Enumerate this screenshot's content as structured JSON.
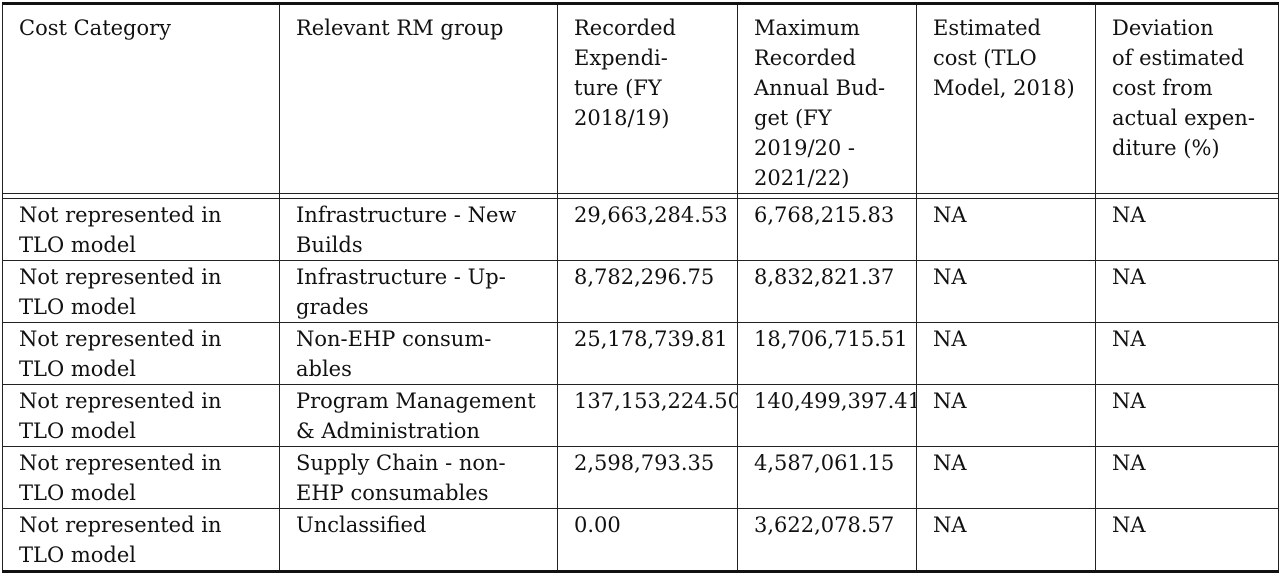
{
  "table": {
    "headers": [
      "Cost Category",
      "Relevant RM group",
      "Recorded\nExpendi-\nture (FY\n2018/19)",
      "Maximum\nRecorded\nAnnual Bud-\nget (FY\n2019/20 -\n2021/22)",
      "Estimated\ncost (TLO\nModel, 2018)",
      "Deviation\nof estimated\ncost from\nactual expen-\nditure (%)"
    ],
    "rows": [
      [
        "Not represented in\nTLO model",
        "Infrastructure - New\nBuilds",
        "29,663,284.53",
        "6,768,215.83",
        "NA",
        "NA"
      ],
      [
        "Not represented in\nTLO model",
        "Infrastructure - Up-\ngrades",
        "8,782,296.75",
        "8,832,821.37",
        "NA",
        "NA"
      ],
      [
        "Not represented in\nTLO model",
        "Non-EHP consum-\nables",
        "25,178,739.81",
        "18,706,715.51",
        "NA",
        "NA"
      ],
      [
        "Not represented in\nTLO model",
        "Program Management\n& Administration",
        "137,153,224.50",
        "140,499,397.41",
        "NA",
        "NA"
      ],
      [
        "Not represented in\nTLO model",
        "Supply Chain - non-\nEHP consumables",
        "2,598,793.35",
        "4,587,061.15",
        "NA",
        "NA"
      ],
      [
        "Not represented in\nTLO model",
        "Unclassified",
        "0.00",
        "3,622,078.57",
        "NA",
        "NA"
      ]
    ]
  }
}
